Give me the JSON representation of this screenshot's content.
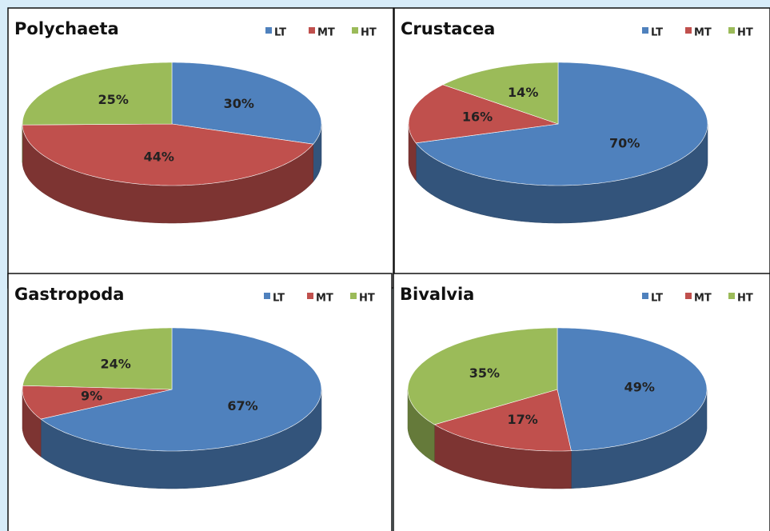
{
  "chart_data": [
    {
      "type": "pie",
      "title": "Polychaeta",
      "categories": [
        "LT",
        "MT",
        "HT"
      ],
      "values": [
        30,
        44,
        25
      ],
      "value_labels": [
        "30%",
        "44%",
        "25%"
      ],
      "colors": [
        "#4f81bd",
        "#c0504d",
        "#9bbb59"
      ]
    },
    {
      "type": "pie",
      "title": "Crustacea",
      "categories": [
        "LT",
        "MT",
        "HT"
      ],
      "values": [
        70,
        16,
        14
      ],
      "value_labels": [
        "70%",
        "16%",
        "14%"
      ],
      "colors": [
        "#4f81bd",
        "#c0504d",
        "#9bbb59"
      ]
    },
    {
      "type": "pie",
      "title": "Gastropoda",
      "categories": [
        "LT",
        "MT",
        "HT"
      ],
      "values": [
        67,
        9,
        24
      ],
      "value_labels": [
        "67%",
        "9%",
        "24%"
      ],
      "colors": [
        "#4f81bd",
        "#c0504d",
        "#9bbb59"
      ]
    },
    {
      "type": "pie",
      "title": "Bivalvia",
      "categories": [
        "LT",
        "MT",
        "HT"
      ],
      "values": [
        49,
        17,
        35
      ],
      "value_labels": [
        "49%",
        "17%",
        "35%"
      ],
      "colors": [
        "#4f81bd",
        "#c0504d",
        "#9bbb59"
      ]
    }
  ]
}
